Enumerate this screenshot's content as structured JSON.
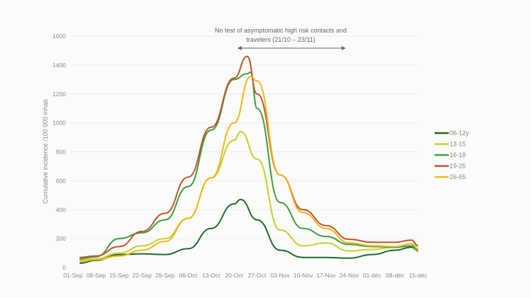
{
  "chart_data": {
    "type": "line",
    "title": "",
    "xlabel": "",
    "ylabel": "Cumulative incidence /100 000 inhab",
    "ylim": [
      0,
      1600
    ],
    "yticks": [
      "0",
      "200",
      "400",
      "600",
      "800",
      "1000",
      "1200",
      "1400",
      "1600"
    ],
    "xticks": [
      "01-Sep",
      "08-Sep",
      "15-Sep",
      "22-Sep",
      "29-Sep",
      "06-Oct",
      "13-Oct",
      "20-Oct",
      "27-Oct",
      "03-Nov",
      "10-Nov",
      "17-Nov",
      "24-Nov",
      "01-déc",
      "08-déc",
      "15-déc"
    ],
    "grid": true,
    "legend_position": "right",
    "annotation": {
      "line1": "No test of asymptomatic high risk contacts and",
      "line2": "travelers (21/10 – 23/11)",
      "arrow_from": "21-Oct",
      "arrow_to": "23-Nov"
    },
    "series": [
      {
        "name": "06-12y",
        "color": "#1e6b2e",
        "x": [
          "03-Sep",
          "08-Sep",
          "15-Sep",
          "22-Sep",
          "29-Sep",
          "06-Oct",
          "13-Oct",
          "20-Oct",
          "22-Oct",
          "27-Oct",
          "03-Nov",
          "10-Nov",
          "17-Nov",
          "24-Nov",
          "01-déc",
          "08-déc",
          "13-déc",
          "15-déc"
        ],
        "y": [
          30,
          50,
          90,
          95,
          90,
          130,
          270,
          440,
          470,
          330,
          120,
          70,
          70,
          65,
          90,
          120,
          140,
          115
        ]
      },
      {
        "name": "13-15",
        "color": "#c5cf2e",
        "x": [
          "03-Sep",
          "08-Sep",
          "15-Sep",
          "22-Sep",
          "29-Sep",
          "06-Oct",
          "13-Oct",
          "20-Oct",
          "22-Oct",
          "27-Oct",
          "03-Nov",
          "10-Nov",
          "17-Nov",
          "24-Nov",
          "01-déc",
          "08-déc",
          "13-déc",
          "15-déc"
        ],
        "y": [
          50,
          60,
          100,
          150,
          200,
          340,
          620,
          880,
          940,
          750,
          260,
          150,
          170,
          115,
          125,
          140,
          150,
          110
        ]
      },
      {
        "name": "16-18",
        "color": "#3e9e3a",
        "x": [
          "03-Sep",
          "08-Sep",
          "15-Sep",
          "22-Sep",
          "29-Sep",
          "06-Oct",
          "13-Oct",
          "20-Oct",
          "24-Oct",
          "25-Oct",
          "27-Oct",
          "03-Nov",
          "10-Nov",
          "17-Nov",
          "24-Nov",
          "01-déc",
          "08-déc",
          "13-déc",
          "15-déc"
        ],
        "y": [
          60,
          75,
          200,
          240,
          330,
          560,
          950,
          1300,
          1340,
          1350,
          1100,
          450,
          270,
          215,
          160,
          145,
          140,
          150,
          120
        ]
      },
      {
        "name": "19-25",
        "color": "#c2552b",
        "x": [
          "03-Sep",
          "08-Sep",
          "15-Sep",
          "22-Sep",
          "29-Sep",
          "06-Oct",
          "13-Oct",
          "20-Oct",
          "24-Oct",
          "27-Oct",
          "03-Nov",
          "10-Nov",
          "17-Nov",
          "24-Nov",
          "01-déc",
          "08-déc",
          "13-déc",
          "15-déc"
        ],
        "y": [
          70,
          80,
          145,
          250,
          375,
          625,
          970,
          1310,
          1460,
          1200,
          640,
          400,
          290,
          195,
          175,
          175,
          190,
          150
        ]
      },
      {
        "name": "26-65",
        "color": "#f2b61c",
        "x": [
          "03-Sep",
          "08-Sep",
          "15-Sep",
          "22-Sep",
          "29-Sep",
          "06-Oct",
          "13-Oct",
          "20-Oct",
          "25-Oct",
          "27-Oct",
          "03-Nov",
          "10-Nov",
          "17-Nov",
          "24-Nov",
          "01-déc",
          "08-déc",
          "13-déc",
          "15-déc"
        ],
        "y": [
          40,
          55,
          80,
          120,
          180,
          340,
          620,
          1000,
          1320,
          1290,
          640,
          380,
          270,
          170,
          150,
          145,
          165,
          130
        ]
      }
    ]
  }
}
